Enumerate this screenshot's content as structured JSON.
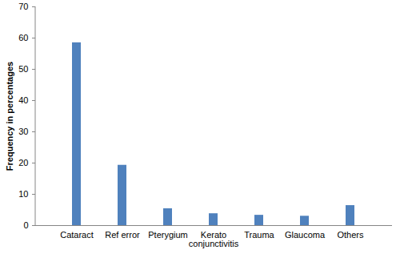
{
  "chart_data": {
    "type": "bar",
    "y_label": "Frequency in percentages",
    "categories": [
      "Cataract",
      "Ref error",
      "Pterygium",
      "Kerato conjunctivitis",
      "Trauma",
      "Glaucoma",
      "Others"
    ],
    "values": [
      58.5,
      19.3,
      5.4,
      3.8,
      3.3,
      3.0,
      6.4
    ],
    "color": "#4f81bd",
    "ylim": [
      0,
      70
    ],
    "yticks": [
      0,
      10,
      20,
      30,
      40,
      50,
      60,
      70
    ],
    "grid": false
  }
}
